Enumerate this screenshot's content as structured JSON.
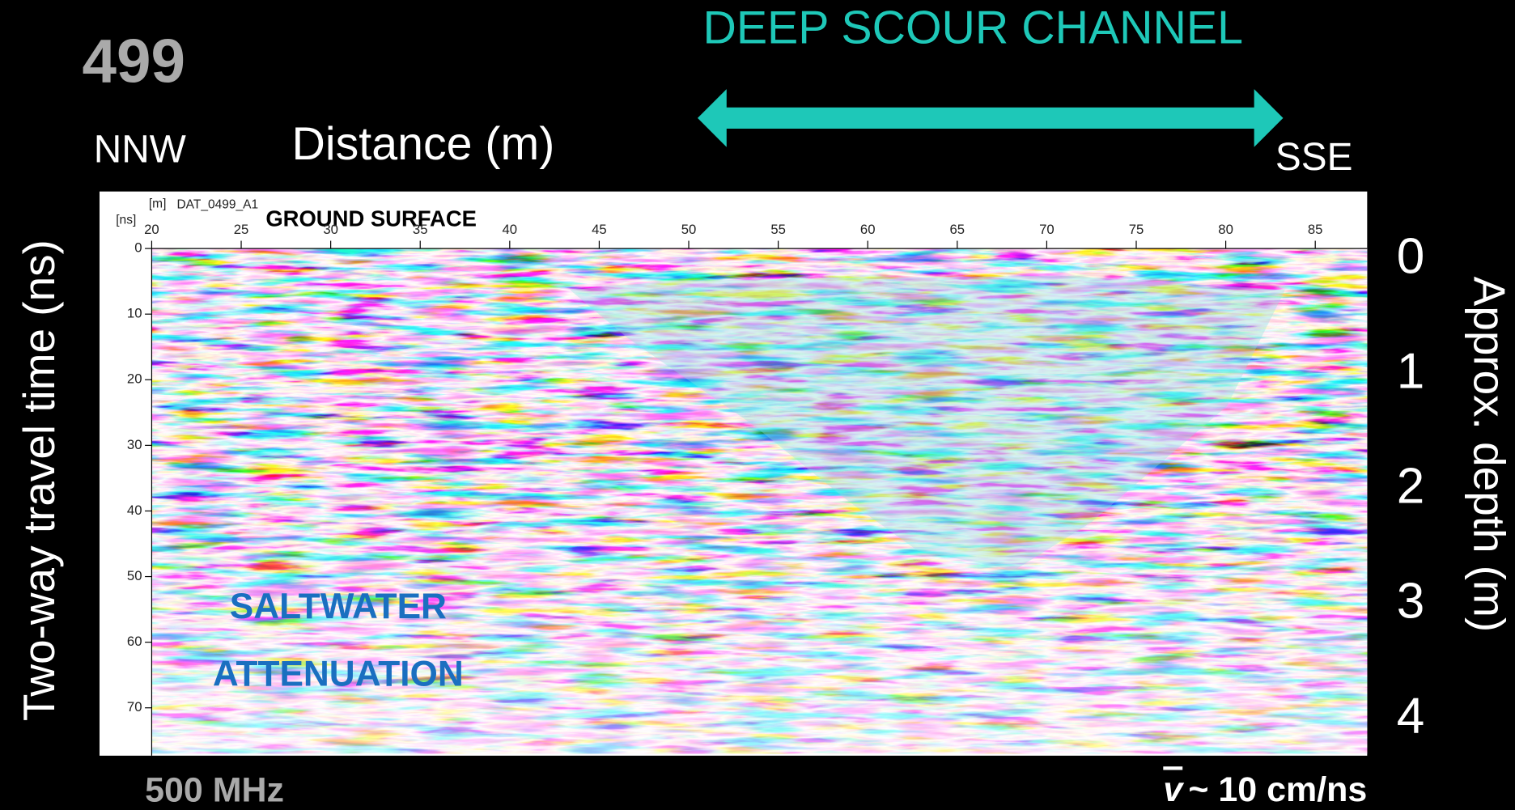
{
  "chart_data": {
    "type": "radargram",
    "title": "DEEP SCOUR CHANNEL",
    "profile_number": "499",
    "x_left_label": "NNW",
    "x_right_label": "SSE",
    "xlabel": "Distance (m)",
    "ylabel": "Two-way travel time (ns)",
    "y2label": "Approx. depth (m)",
    "x_unit": "[m]",
    "y_unit": "[ns]",
    "file_name": "DAT_0499_A1",
    "annotations": [
      "GROUND SURFACE",
      "SALTWATER",
      "ATTENUATION"
    ],
    "frequency": "500 MHz",
    "velocity_symbol": "v",
    "velocity": "~ 10 cm/ns",
    "xlim": [
      20,
      87.9
    ],
    "xticks": [
      20,
      25,
      30,
      35,
      40,
      45,
      50,
      55,
      60,
      65,
      70,
      75,
      80,
      85
    ],
    "ylim": [
      0,
      77
    ],
    "yticks": [
      0,
      10,
      20,
      30,
      40,
      50,
      60,
      70
    ],
    "y2lim": [
      -0.1,
      4.3
    ],
    "y2ticks": [
      0,
      1,
      2,
      3,
      4
    ],
    "title_color": "#1ec8b8"
  }
}
